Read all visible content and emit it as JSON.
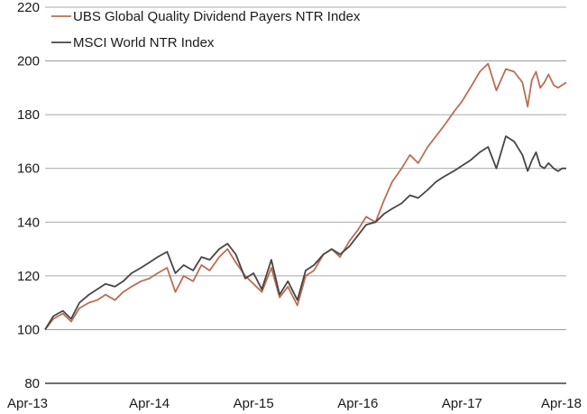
{
  "chart_data": {
    "type": "line",
    "title": "",
    "xlabel": "",
    "ylabel": "",
    "ylim": [
      80,
      220
    ],
    "yticks": [
      80,
      100,
      120,
      140,
      160,
      180,
      200,
      220
    ],
    "xlim": [
      "Apr-13",
      "Apr-18"
    ],
    "xticks": [
      "Apr-13",
      "Apr-14",
      "Apr-15",
      "Apr-16",
      "Apr-17",
      "Apr-18"
    ],
    "grid": "horizontal",
    "legend": "top-left",
    "series": [
      {
        "name": "UBS Global Quality Dividend Payers NTR Index",
        "color": "#b86f55",
        "x": [
          0,
          0.08,
          0.17,
          0.25,
          0.33,
          0.42,
          0.5,
          0.58,
          0.67,
          0.75,
          0.83,
          0.92,
          1.0,
          1.08,
          1.17,
          1.25,
          1.33,
          1.42,
          1.5,
          1.58,
          1.67,
          1.75,
          1.83,
          1.92,
          2.0,
          2.08,
          2.17,
          2.25,
          2.33,
          2.42,
          2.5,
          2.58,
          2.67,
          2.75,
          2.83,
          2.92,
          3.0,
          3.08,
          3.17,
          3.25,
          3.33,
          3.42,
          3.5,
          3.58,
          3.67,
          3.75,
          3.83,
          3.92,
          4.0,
          4.08,
          4.17,
          4.25,
          4.33,
          4.42,
          4.5,
          4.58,
          4.63,
          4.67,
          4.71,
          4.75,
          4.79,
          4.83,
          4.88,
          4.92,
          4.96,
          5.0
        ],
        "y": [
          100,
          104,
          106,
          103,
          108,
          110,
          111,
          113,
          111,
          114,
          116,
          118,
          119,
          121,
          123,
          114,
          120,
          118,
          124,
          122,
          127,
          130,
          125,
          120,
          117,
          114,
          123,
          112,
          116,
          109,
          120,
          122,
          128,
          130,
          127,
          133,
          137,
          142,
          140,
          148,
          155,
          160,
          165,
          162,
          168,
          172,
          176,
          181,
          185,
          190,
          196,
          199,
          189,
          197,
          196,
          192,
          183,
          193,
          196,
          190,
          192,
          195,
          191,
          190,
          191,
          192
        ]
      },
      {
        "name": "MSCI World NTR Index",
        "color": "#4a4444",
        "x": [
          0,
          0.08,
          0.17,
          0.25,
          0.33,
          0.42,
          0.5,
          0.58,
          0.67,
          0.75,
          0.83,
          0.92,
          1.0,
          1.08,
          1.17,
          1.25,
          1.33,
          1.42,
          1.5,
          1.58,
          1.67,
          1.75,
          1.83,
          1.92,
          2.0,
          2.08,
          2.17,
          2.25,
          2.33,
          2.42,
          2.5,
          2.58,
          2.67,
          2.75,
          2.83,
          2.92,
          3.0,
          3.08,
          3.17,
          3.25,
          3.33,
          3.42,
          3.5,
          3.58,
          3.67,
          3.75,
          3.83,
          3.92,
          4.0,
          4.08,
          4.17,
          4.25,
          4.33,
          4.42,
          4.5,
          4.58,
          4.63,
          4.67,
          4.71,
          4.75,
          4.79,
          4.83,
          4.88,
          4.92,
          4.96,
          5.0
        ],
        "y": [
          100,
          105,
          107,
          104,
          110,
          113,
          115,
          117,
          116,
          118,
          121,
          123,
          125,
          127,
          129,
          121,
          124,
          122,
          127,
          126,
          130,
          132,
          128,
          119,
          121,
          115,
          126,
          113,
          118,
          111,
          122,
          124,
          128,
          130,
          128,
          131,
          135,
          139,
          140,
          143,
          145,
          147,
          150,
          149,
          152,
          155,
          157,
          159,
          161,
          163,
          166,
          168,
          160,
          172,
          170,
          165,
          159,
          163,
          166,
          161,
          160,
          162,
          160,
          159,
          160,
          160
        ]
      }
    ]
  }
}
